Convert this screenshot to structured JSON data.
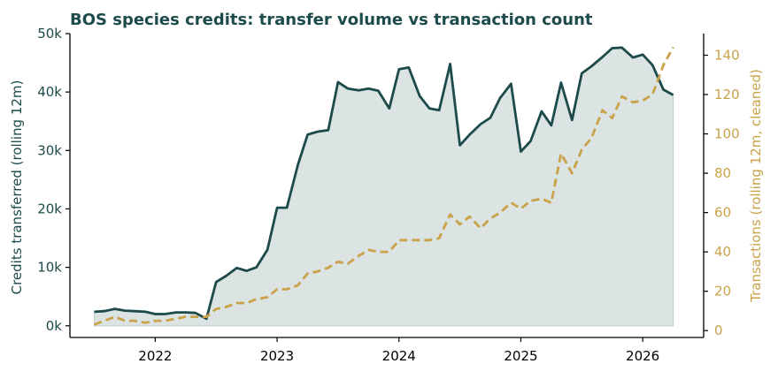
{
  "chart_data": {
    "type": "area",
    "title": "BOS species credits: transfer volume vs transaction count",
    "ylabel": "Credits transferred (rolling 12m)",
    "y2label": "Transactions (rolling 12m, cleaned)",
    "xlim": [
      2021.3,
      2026.5
    ],
    "ylim": [
      -2000,
      50000
    ],
    "y2lim": [
      -3.5,
      151
    ],
    "x_ticks": [
      {
        "value": 2022,
        "label": "2022"
      },
      {
        "value": 2023,
        "label": "2023"
      },
      {
        "value": 2024,
        "label": "2024"
      },
      {
        "value": 2025,
        "label": "2025"
      },
      {
        "value": 2026,
        "label": "2026"
      }
    ],
    "y_ticks": [
      {
        "value": 0,
        "label": "0k"
      },
      {
        "value": 10000,
        "label": "10k"
      },
      {
        "value": 20000,
        "label": "20k"
      },
      {
        "value": 30000,
        "label": "30k"
      },
      {
        "value": 40000,
        "label": "40k"
      },
      {
        "value": 50000,
        "label": "50k"
      }
    ],
    "y2_ticks": [
      {
        "value": 0,
        "label": "0"
      },
      {
        "value": 20,
        "label": "20"
      },
      {
        "value": 40,
        "label": "40"
      },
      {
        "value": 60,
        "label": "60"
      },
      {
        "value": 80,
        "label": "80"
      },
      {
        "value": 100,
        "label": "100"
      },
      {
        "value": 120,
        "label": "120"
      },
      {
        "value": 140,
        "label": "140"
      }
    ],
    "colors": {
      "volume": "#1d4a4a",
      "area": "#dbe3e3",
      "transactions": "#c9a24a",
      "title": "#1d4a4a"
    },
    "series": [
      {
        "axis": "left",
        "style": "solid-area",
        "points": [
          [
            2021.5,
            2400
          ],
          [
            2021.58,
            2500
          ],
          [
            2021.67,
            2900
          ],
          [
            2021.75,
            2600
          ],
          [
            2021.83,
            2500
          ],
          [
            2021.92,
            2400
          ],
          [
            2022.0,
            2000
          ],
          [
            2022.08,
            2000
          ],
          [
            2022.17,
            2300
          ],
          [
            2022.25,
            2300
          ],
          [
            2022.33,
            2200
          ],
          [
            2022.42,
            1200
          ],
          [
            2022.5,
            7500
          ],
          [
            2022.58,
            8500
          ],
          [
            2022.67,
            9900
          ],
          [
            2022.75,
            9400
          ],
          [
            2022.83,
            10000
          ],
          [
            2022.92,
            13000
          ],
          [
            2023.0,
            20200
          ],
          [
            2023.08,
            20200
          ],
          [
            2023.17,
            27500
          ],
          [
            2023.25,
            32700
          ],
          [
            2023.33,
            33200
          ],
          [
            2023.42,
            33500
          ],
          [
            2023.5,
            41700
          ],
          [
            2023.58,
            40600
          ],
          [
            2023.67,
            40300
          ],
          [
            2023.75,
            40600
          ],
          [
            2023.83,
            40200
          ],
          [
            2023.92,
            37200
          ],
          [
            2024.0,
            43900
          ],
          [
            2024.08,
            44200
          ],
          [
            2024.17,
            39300
          ],
          [
            2024.25,
            37200
          ],
          [
            2024.33,
            36900
          ],
          [
            2024.42,
            44800
          ],
          [
            2024.5,
            30900
          ],
          [
            2024.58,
            32700
          ],
          [
            2024.67,
            34500
          ],
          [
            2024.75,
            35600
          ],
          [
            2024.83,
            39000
          ],
          [
            2024.92,
            41400
          ],
          [
            2025.0,
            29800
          ],
          [
            2025.08,
            31600
          ],
          [
            2025.17,
            36700
          ],
          [
            2025.25,
            34300
          ],
          [
            2025.33,
            41600
          ],
          [
            2025.42,
            35200
          ],
          [
            2025.5,
            43200
          ],
          [
            2025.58,
            44400
          ],
          [
            2025.67,
            46000
          ],
          [
            2025.75,
            47500
          ],
          [
            2025.83,
            47600
          ],
          [
            2025.92,
            45900
          ],
          [
            2026.0,
            46400
          ],
          [
            2026.08,
            44600
          ],
          [
            2026.17,
            40400
          ],
          [
            2026.25,
            39500
          ]
        ]
      },
      {
        "axis": "right",
        "style": "dashed",
        "points": [
          [
            2021.5,
            3
          ],
          [
            2021.58,
            5
          ],
          [
            2021.67,
            7
          ],
          [
            2021.75,
            5
          ],
          [
            2021.83,
            5
          ],
          [
            2021.92,
            4
          ],
          [
            2022.0,
            5
          ],
          [
            2022.08,
            5
          ],
          [
            2022.17,
            6
          ],
          [
            2022.25,
            7
          ],
          [
            2022.33,
            7
          ],
          [
            2022.42,
            7
          ],
          [
            2022.5,
            11
          ],
          [
            2022.58,
            12
          ],
          [
            2022.67,
            14
          ],
          [
            2022.75,
            14
          ],
          [
            2022.83,
            16
          ],
          [
            2022.92,
            17
          ],
          [
            2023.0,
            21
          ],
          [
            2023.08,
            21
          ],
          [
            2023.17,
            23
          ],
          [
            2023.25,
            29
          ],
          [
            2023.33,
            30
          ],
          [
            2023.42,
            32
          ],
          [
            2023.5,
            35
          ],
          [
            2023.58,
            34
          ],
          [
            2023.67,
            38
          ],
          [
            2023.75,
            41
          ],
          [
            2023.83,
            40
          ],
          [
            2023.92,
            40
          ],
          [
            2024.0,
            46
          ],
          [
            2024.08,
            46
          ],
          [
            2024.17,
            46
          ],
          [
            2024.25,
            46
          ],
          [
            2024.33,
            47
          ],
          [
            2024.42,
            59
          ],
          [
            2024.5,
            54
          ],
          [
            2024.58,
            58
          ],
          [
            2024.67,
            52
          ],
          [
            2024.75,
            57
          ],
          [
            2024.83,
            60
          ],
          [
            2024.92,
            65
          ],
          [
            2025.0,
            62
          ],
          [
            2025.08,
            66
          ],
          [
            2025.17,
            67
          ],
          [
            2025.25,
            65
          ],
          [
            2025.33,
            90
          ],
          [
            2025.42,
            80
          ],
          [
            2025.5,
            92
          ],
          [
            2025.58,
            98
          ],
          [
            2025.67,
            112
          ],
          [
            2025.75,
            108
          ],
          [
            2025.83,
            119
          ],
          [
            2025.92,
            116
          ],
          [
            2026.0,
            117
          ],
          [
            2026.08,
            120
          ],
          [
            2026.17,
            135
          ],
          [
            2026.25,
            144
          ]
        ]
      }
    ]
  }
}
